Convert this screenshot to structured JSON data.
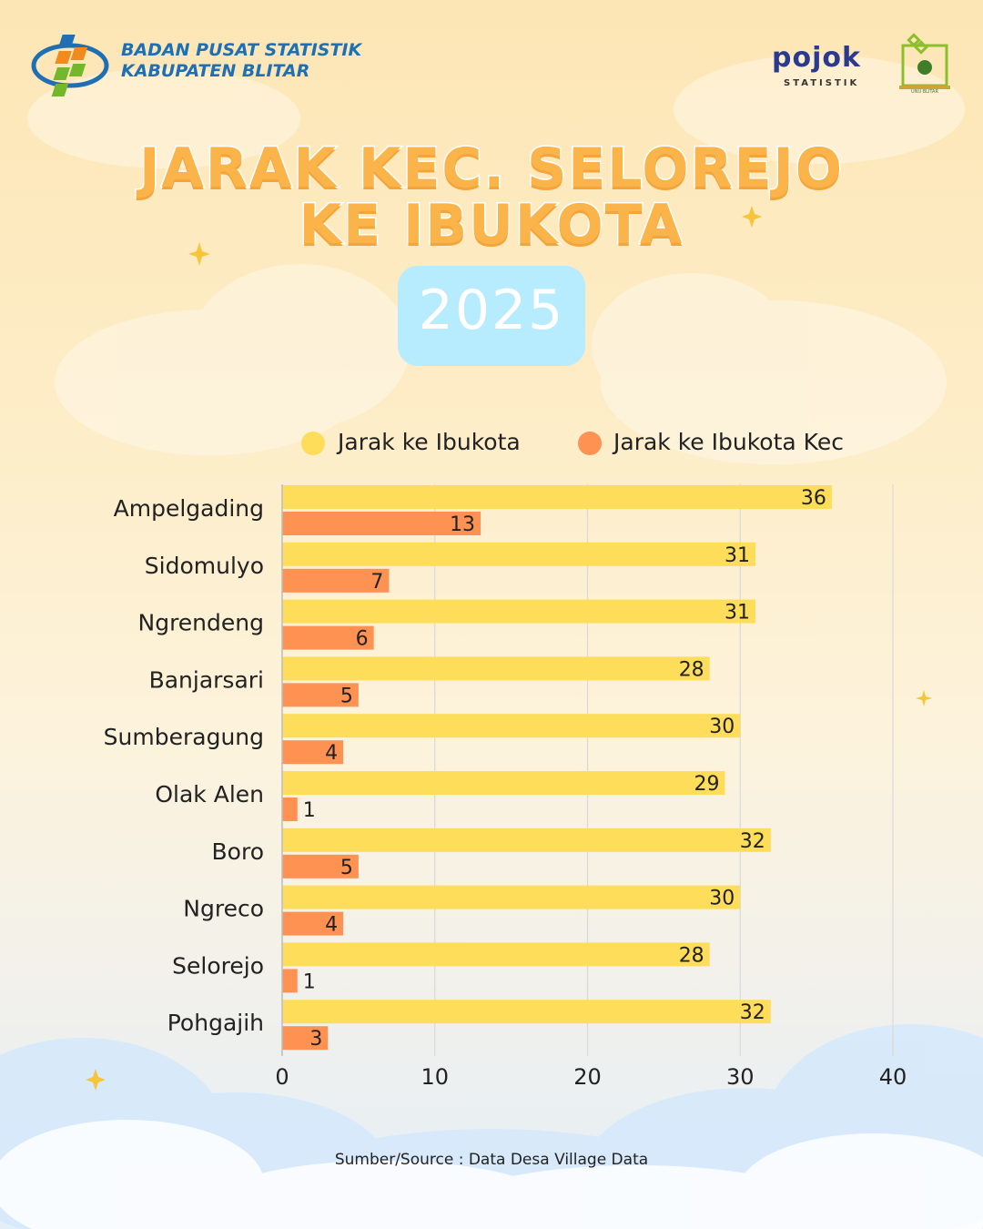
{
  "header": {
    "org_line1": "BADAN PUSAT STATISTIK",
    "org_line2": "KABUPATEN BLITAR",
    "partner_logo_text": "pojok",
    "partner_logo_sub": "STATISTIK",
    "univ_logo_text": "UNU BLITAR"
  },
  "title": {
    "line1": "JARAK KEC. SELOREJO",
    "line2": "KE IBUKOTA",
    "year": "2025"
  },
  "colors": {
    "series1": "#fedd5a",
    "series2": "#fe9252",
    "title": "#fbb44a",
    "year_box": "#b7ecff",
    "grid": "#d9d9d9"
  },
  "chart_data": {
    "type": "bar",
    "orientation": "horizontal",
    "categories": [
      "Ampelgading",
      "Sidomulyo",
      "Ngrendeng",
      "Banjarsari",
      "Sumberagung",
      "Olak Alen",
      "Boro",
      "Ngreco",
      "Selorejo",
      "Pohgajih"
    ],
    "series": [
      {
        "name": "Jarak ke Ibukota",
        "values": [
          36,
          31,
          31,
          28,
          30,
          29,
          32,
          30,
          28,
          32
        ]
      },
      {
        "name": "Jarak ke Ibukota Kec",
        "values": [
          13,
          7,
          6,
          5,
          4,
          1,
          5,
          4,
          1,
          3
        ]
      }
    ],
    "xlim": [
      0,
      40
    ],
    "ticks": [
      0,
      10,
      20,
      30,
      40
    ],
    "grid": true,
    "legend": "top",
    "data_labels": true
  },
  "footer": {
    "source": "Sumber/Source : Data Desa Village Data"
  }
}
